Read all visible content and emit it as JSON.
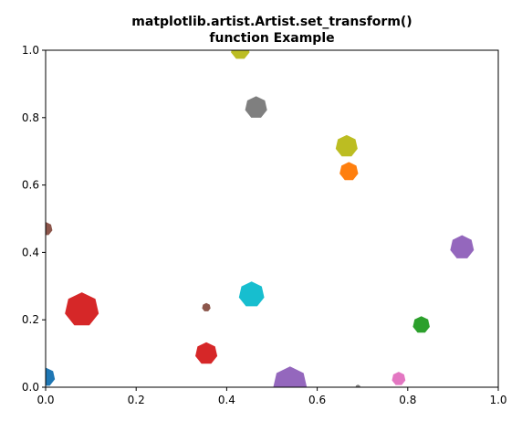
{
  "chart_data": {
    "type": "scatter",
    "title_lines": [
      "matplotlib.artist.Artist.set_transform()",
      "function Example"
    ],
    "xlabel": "",
    "ylabel": "",
    "xlim": [
      0,
      1
    ],
    "ylim": [
      0,
      1
    ],
    "x_ticks": [
      "0.0",
      "0.2",
      "0.4",
      "0.6",
      "0.8",
      "1.0"
    ],
    "y_ticks": [
      "0.0",
      "0.2",
      "0.4",
      "0.6",
      "0.8",
      "1.0"
    ],
    "grid": false,
    "legend": "none",
    "marker": "regular heptagon",
    "points": [
      {
        "x": 0.0,
        "y": 0.03,
        "size": 0.55,
        "color": "#1f77b4"
      },
      {
        "x": 0.67,
        "y": 0.64,
        "size": 0.55,
        "color": "#ff7f0e"
      },
      {
        "x": 0.83,
        "y": 0.185,
        "size": 0.5,
        "color": "#2ca02c"
      },
      {
        "x": 0.08,
        "y": 0.23,
        "size": 1.0,
        "color": "#d62728"
      },
      {
        "x": 0.355,
        "y": 0.1,
        "size": 0.65,
        "color": "#d62728"
      },
      {
        "x": 0.92,
        "y": 0.415,
        "size": 0.7,
        "color": "#9467bd"
      },
      {
        "x": 0.54,
        "y": 0.01,
        "size": 1.0,
        "color": "#9467bd"
      },
      {
        "x": 0.355,
        "y": 0.237,
        "size": 0.25,
        "color": "#8c564b"
      },
      {
        "x": 0.0,
        "y": 0.47,
        "size": 0.4,
        "color": "#8c564b"
      },
      {
        "x": 0.78,
        "y": 0.025,
        "size": 0.4,
        "color": "#e377c2"
      },
      {
        "x": 0.465,
        "y": 0.83,
        "size": 0.65,
        "color": "#7f7f7f"
      },
      {
        "x": 0.665,
        "y": 0.715,
        "size": 0.65,
        "color": "#bcbd22"
      },
      {
        "x": 0.43,
        "y": 1.0,
        "size": 0.55,
        "color": "#bcbd22"
      },
      {
        "x": 0.455,
        "y": 0.275,
        "size": 0.75,
        "color": "#17becf"
      },
      {
        "x": 0.69,
        "y": 0.0,
        "size": 0.15,
        "color": "#7f7f7f"
      }
    ]
  }
}
